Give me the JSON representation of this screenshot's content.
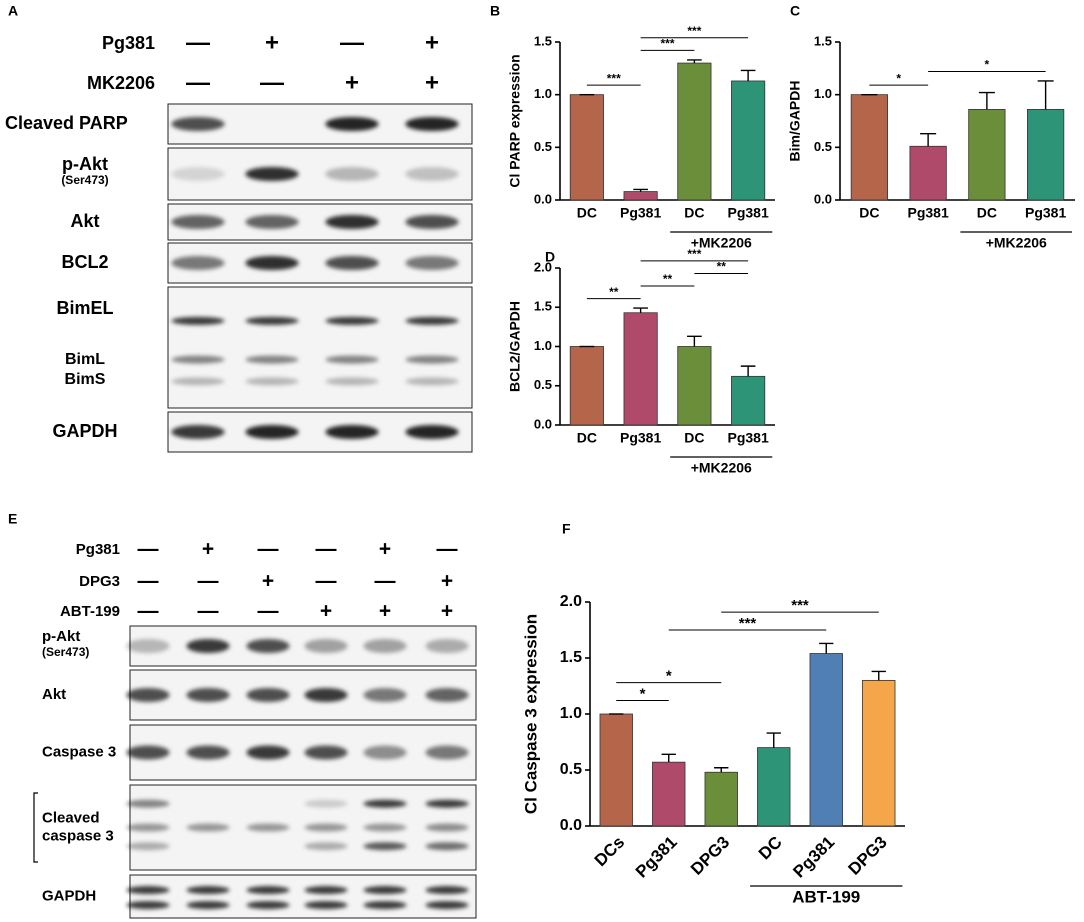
{
  "panel_a": {
    "label": "A",
    "conditions": [
      {
        "name": "Pg381",
        "signs": [
          "—",
          "+",
          "—",
          "+"
        ]
      },
      {
        "name": "MK2206",
        "signs": [
          "—",
          "—",
          "+",
          "+"
        ]
      }
    ],
    "rows": [
      {
        "lines": [
          "Cleaved PARP"
        ]
      },
      {
        "lines": [
          "p-Akt"
        ],
        "note": "(Ser473)"
      },
      {
        "lines": [
          "Akt"
        ]
      },
      {
        "lines": [
          "BCL2"
        ]
      },
      {
        "lines": [
          "BimEL"
        ],
        "sub_lines": [
          "BimL",
          "BimS"
        ]
      },
      {
        "lines": [
          "GAPDH"
        ]
      }
    ]
  },
  "panel_e": {
    "label": "E",
    "conditions": [
      {
        "name": "Pg381",
        "signs": [
          "—",
          "+",
          "—",
          "—",
          "+",
          "—"
        ]
      },
      {
        "name": "DPG3",
        "signs": [
          "—",
          "—",
          "+",
          "—",
          "—",
          "+"
        ]
      },
      {
        "name": "ABT-199",
        "signs": [
          "—",
          "—",
          "—",
          "+",
          "+",
          "+"
        ]
      }
    ],
    "rows": [
      {
        "lines": [
          "p-Akt"
        ],
        "note": "(Ser473)"
      },
      {
        "lines": [
          "Akt"
        ]
      },
      {
        "lines": [
          "Caspase 3"
        ]
      },
      {
        "lines": [
          "Cleaved",
          "caspase 3"
        ]
      },
      {
        "lines": [
          "GAPDH"
        ]
      }
    ]
  },
  "chart_data": [
    {
      "type": "bar",
      "label": "B",
      "ylabel": "Cl  PARP expression",
      "categories": [
        "DC",
        "Pg381",
        "DC",
        "Pg381"
      ],
      "values": [
        1.0,
        0.08,
        1.3,
        1.13
      ],
      "errors": [
        0,
        0.02,
        0.03,
        0.1
      ],
      "colors": [
        "#b5654a",
        "#b04a6a",
        "#6b8e3a",
        "#2e9478"
      ],
      "ylim": [
        0,
        1.5
      ],
      "yticks": [
        {
          "value": 0,
          "label": "0.0"
        },
        0.5,
        {
          "value": 1,
          "label": "1.0"
        },
        1.5
      ],
      "group": {
        "label": "+MK2206",
        "span": [
          2,
          3
        ]
      },
      "comparisons": [
        {
          "pair": [
            0,
            1
          ],
          "label": "***"
        },
        {
          "pair": [
            1,
            2
          ],
          "label": "***"
        },
        {
          "pair": [
            1,
            3
          ],
          "label": "***"
        }
      ]
    },
    {
      "type": "bar",
      "label": "C",
      "ylabel": "Bim/GAPDH",
      "categories": [
        "DC",
        "Pg381",
        "DC",
        "Pg381"
      ],
      "values": [
        1.0,
        0.51,
        0.86,
        0.86
      ],
      "errors": [
        0,
        0.12,
        0.16,
        0.27
      ],
      "colors": [
        "#b5654a",
        "#b04a6a",
        "#6b8e3a",
        "#2e9478"
      ],
      "ylim": [
        0,
        1.5
      ],
      "yticks": [
        {
          "value": 0,
          "label": "0.0"
        },
        0.5,
        {
          "value": 1,
          "label": "1.0"
        },
        1.5
      ],
      "group": {
        "label": "+MK2206",
        "span": [
          2,
          3
        ]
      },
      "comparisons": [
        {
          "pair": [
            0,
            1
          ],
          "label": "*"
        },
        {
          "pair": [
            1,
            3
          ],
          "label": "*"
        }
      ]
    },
    {
      "type": "bar",
      "label": "D",
      "ylabel": "BCL2/GAPDH",
      "categories": [
        "DC",
        "Pg381",
        "DC",
        "Pg381"
      ],
      "values": [
        1.0,
        1.43,
        1.0,
        0.62
      ],
      "errors": [
        0,
        0.06,
        0.13,
        0.13
      ],
      "colors": [
        "#b5654a",
        "#b04a6a",
        "#6b8e3a",
        "#2e9478"
      ],
      "ylim": [
        0,
        2
      ],
      "yticks": [
        {
          "value": 0,
          "label": "0.0"
        },
        0.5,
        {
          "value": 1,
          "label": "1.0"
        },
        1.5,
        {
          "value": 2,
          "label": "2.0"
        }
      ],
      "group": {
        "label": "+MK2206",
        "span": [
          2,
          3
        ]
      },
      "comparisons": [
        {
          "pair": [
            0,
            1
          ],
          "label": "**"
        },
        {
          "pair": [
            1,
            2
          ],
          "label": "**"
        },
        {
          "pair": [
            2,
            3
          ],
          "label": "**"
        },
        {
          "pair": [
            1,
            3
          ],
          "label": "***"
        }
      ]
    },
    {
      "type": "bar",
      "label": "F",
      "ylabel": "Cl Caspase 3 expression",
      "categories": [
        "DCs",
        "Pg381",
        "DPG3",
        "DC",
        "Pg381",
        "DPG3"
      ],
      "values": [
        1.0,
        0.57,
        0.48,
        0.7,
        1.54,
        1.3
      ],
      "errors": [
        0,
        0.07,
        0.04,
        0.13,
        0.09,
        0.08
      ],
      "colors": [
        "#b5654a",
        "#b04a6a",
        "#6b8e3a",
        "#2e9478",
        "#4f7fb5",
        "#f5a54a"
      ],
      "ylim": [
        0,
        2
      ],
      "yticks": [
        {
          "value": 0,
          "label": "0.0"
        },
        0.5,
        {
          "value": 1,
          "label": "1.0"
        },
        1.5,
        {
          "value": 2,
          "label": "2.0"
        }
      ],
      "group": {
        "label": "ABT-199",
        "span": [
          3,
          5
        ]
      },
      "comparisons": [
        {
          "pair": [
            0,
            1
          ],
          "label": "*"
        },
        {
          "pair": [
            0,
            2
          ],
          "label": "*"
        },
        {
          "pair": [
            1,
            4
          ],
          "label": "***"
        },
        {
          "pair": [
            2,
            5
          ],
          "label": "***"
        }
      ]
    }
  ]
}
